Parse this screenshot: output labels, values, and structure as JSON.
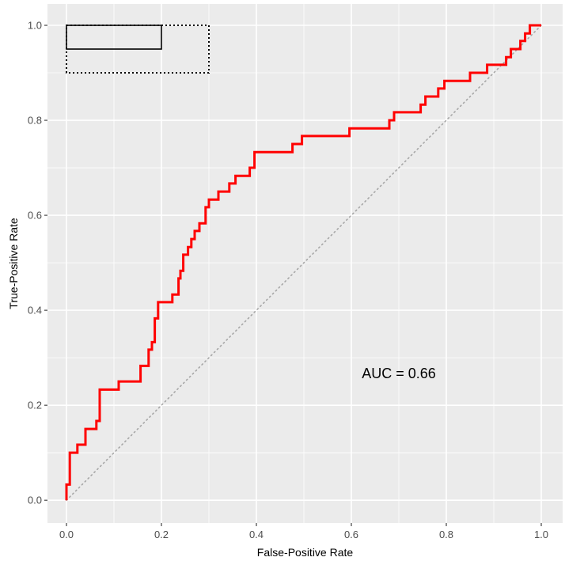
{
  "chart_data": {
    "type": "line",
    "title": "",
    "xlabel": "False-Positive Rate",
    "ylabel": "True-Positive Rate",
    "xlim": [
      -0.04,
      1.045
    ],
    "ylim": [
      -0.048,
      1.045
    ],
    "x_ticks": [
      0.0,
      0.2,
      0.4,
      0.6,
      0.8,
      1.0
    ],
    "x_tick_labels": [
      "0.0",
      "0.2",
      "0.4",
      "0.6",
      "0.8",
      "1.0"
    ],
    "y_ticks": [
      0.0,
      0.2,
      0.4,
      0.6,
      0.8,
      1.0
    ],
    "y_tick_labels": [
      "0.0",
      "0.2",
      "0.4",
      "0.6",
      "0.8",
      "1.0"
    ],
    "grid": true,
    "annotation": "AUC = 0.66",
    "annotation_position": [
      0.7,
      0.267
    ],
    "colors": {
      "panel": "#ebebeb",
      "grid": "#ffffff",
      "roc": "#ff0000",
      "diagonal": "#a6a6a6",
      "box": "#000000"
    },
    "reference_diagonal": {
      "x": [
        0,
        1
      ],
      "y": [
        0,
        1
      ],
      "style": "dotted"
    },
    "solid_box": {
      "x": [
        0,
        0.2
      ],
      "y": [
        0.95,
        1.0
      ]
    },
    "dotted_box": {
      "x": [
        0,
        0.3
      ],
      "y": [
        0.9,
        1.0
      ]
    },
    "series": [
      {
        "values_x": [
          0,
          0,
          0.007,
          0.007,
          0.023,
          0.023,
          0.04,
          0.04,
          0.063,
          0.063,
          0.07,
          0.07,
          0.11,
          0.11,
          0.156,
          0.156,
          0.173,
          0.173,
          0.18,
          0.18,
          0.186,
          0.186,
          0.193,
          0.193,
          0.223,
          0.223,
          0.236,
          0.236,
          0.24,
          0.24,
          0.246,
          0.246,
          0.256,
          0.256,
          0.263,
          0.263,
          0.27,
          0.27,
          0.28,
          0.28,
          0.293,
          0.293,
          0.3,
          0.3,
          0.32,
          0.32,
          0.343,
          0.343,
          0.356,
          0.356,
          0.386,
          0.386,
          0.396,
          0.396,
          0.476,
          0.476,
          0.496,
          0.496,
          0.596,
          0.596,
          0.68,
          0.68,
          0.69,
          0.69,
          0.746,
          0.746,
          0.756,
          0.756,
          0.783,
          0.783,
          0.796,
          0.796,
          0.85,
          0.85,
          0.886,
          0.886,
          0.926,
          0.926,
          0.936,
          0.936,
          0.956,
          0.956,
          0.966,
          0.966,
          0.976,
          0.976,
          1.0
        ],
        "values_y": [
          0,
          0.033,
          0.033,
          0.1,
          0.1,
          0.117,
          0.117,
          0.15,
          0.15,
          0.167,
          0.167,
          0.233,
          0.233,
          0.25,
          0.25,
          0.283,
          0.283,
          0.317,
          0.317,
          0.333,
          0.333,
          0.383,
          0.383,
          0.417,
          0.417,
          0.433,
          0.433,
          0.467,
          0.467,
          0.483,
          0.483,
          0.517,
          0.517,
          0.533,
          0.533,
          0.55,
          0.55,
          0.567,
          0.567,
          0.583,
          0.583,
          0.617,
          0.617,
          0.633,
          0.633,
          0.65,
          0.65,
          0.667,
          0.667,
          0.683,
          0.683,
          0.7,
          0.7,
          0.733,
          0.733,
          0.75,
          0.75,
          0.767,
          0.767,
          0.783,
          0.783,
          0.8,
          0.8,
          0.817,
          0.817,
          0.833,
          0.833,
          0.85,
          0.85,
          0.867,
          0.867,
          0.883,
          0.883,
          0.9,
          0.9,
          0.917,
          0.917,
          0.933,
          0.933,
          0.95,
          0.95,
          0.967,
          0.967,
          0.983,
          0.983,
          1.0,
          1.0
        ]
      }
    ]
  }
}
